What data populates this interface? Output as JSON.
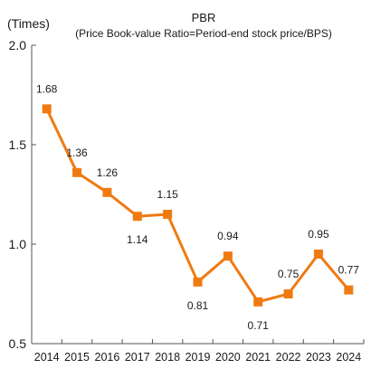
{
  "colors": {
    "line": "#f07a12",
    "marker": "#f07a12",
    "axis": "#555555",
    "text": "#1a1a1a"
  },
  "chart_data": {
    "type": "line",
    "title": "PBR",
    "subtitle": "(Price Book-value Ratio=Period-end stock price/BPS)",
    "ylabel": "(Times)",
    "xlabel": "",
    "x": [
      "2014",
      "2015",
      "2016",
      "2017",
      "2018",
      "2019",
      "2020",
      "2021",
      "2022",
      "2023",
      "2024"
    ],
    "series": [
      {
        "values": [
          1.68,
          1.36,
          1.26,
          1.14,
          1.15,
          0.81,
          0.94,
          0.71,
          0.75,
          0.95,
          0.77
        ]
      }
    ],
    "data_labels": [
      "1.68",
      "1.36",
      "1.26",
      "1.14",
      "1.15",
      "0.81",
      "0.94",
      "0.71",
      "0.75",
      "0.95",
      "0.77"
    ],
    "ylim": [
      0.5,
      2.0
    ],
    "yticks": [
      0.5,
      1.0,
      1.5,
      2.0
    ],
    "ytick_labels": [
      "0.5",
      "1.0",
      "1.5",
      "2.0"
    ],
    "grid": false,
    "legend": "none",
    "marker": "square"
  }
}
